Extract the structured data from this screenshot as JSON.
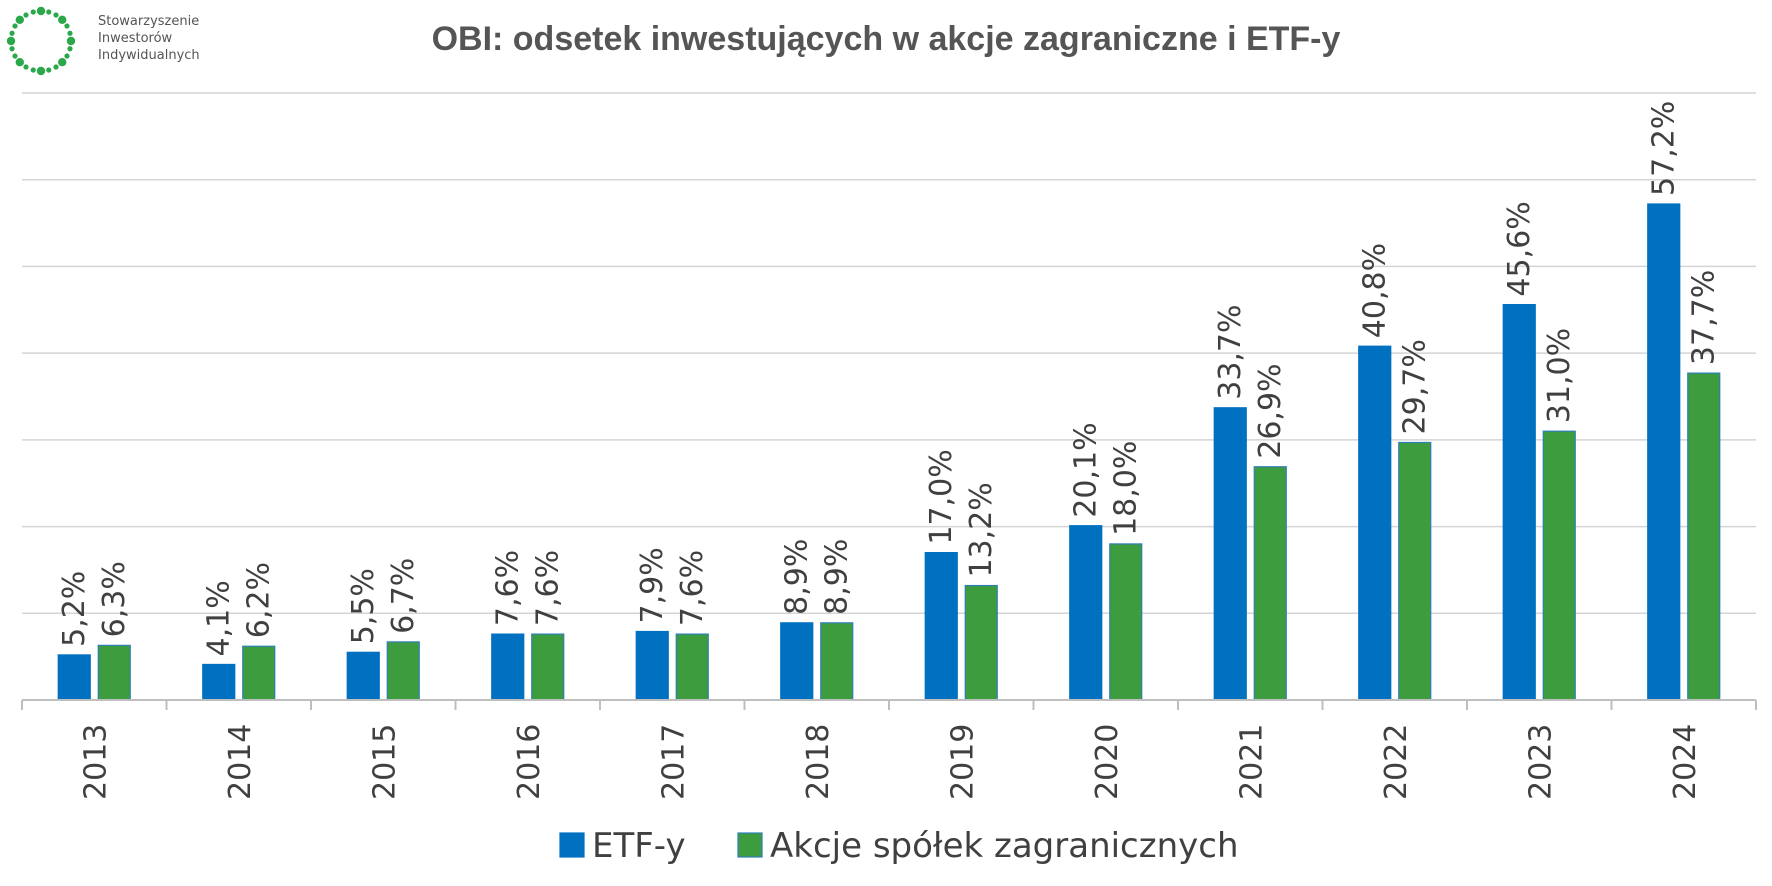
{
  "logo": {
    "lines": [
      "Stowarzyszenie",
      "Inwestorów",
      "Indywidualnych"
    ],
    "color": "#2aa84a"
  },
  "chart_data": {
    "type": "bar",
    "title": "OBI: odsetek inwestujących w akcje zagraniczne i ETF-y",
    "categories": [
      "2013",
      "2014",
      "2015",
      "2016",
      "2017",
      "2018",
      "2019",
      "2020",
      "2021",
      "2022",
      "2023",
      "2024"
    ],
    "series": [
      {
        "name": "ETF-y",
        "color": "#0070c0",
        "values": [
          5.2,
          4.1,
          5.5,
          7.6,
          7.9,
          8.9,
          17.0,
          20.1,
          33.7,
          40.8,
          45.6,
          57.2
        ],
        "labels": [
          "5,2%",
          "4,1%",
          "5,5%",
          "7,6%",
          "7,9%",
          "8,9%",
          "17,0%",
          "20,1%",
          "33,7%",
          "40,8%",
          "45,6%",
          "57,2%"
        ]
      },
      {
        "name": "Akcje spółek zagranicznych",
        "color": "#3d9c3d",
        "values": [
          6.3,
          6.2,
          6.7,
          7.6,
          7.6,
          8.9,
          13.2,
          18.0,
          26.9,
          29.7,
          31.0,
          37.7
        ],
        "labels": [
          "6,3%",
          "6,2%",
          "6,7%",
          "7,6%",
          "7,6%",
          "8,9%",
          "13,2%",
          "18,0%",
          "26,9%",
          "29,7%",
          "31,0%",
          "37,7%"
        ]
      }
    ],
    "ylim": [
      0,
      70
    ],
    "grid": true,
    "legend": "bottom"
  }
}
